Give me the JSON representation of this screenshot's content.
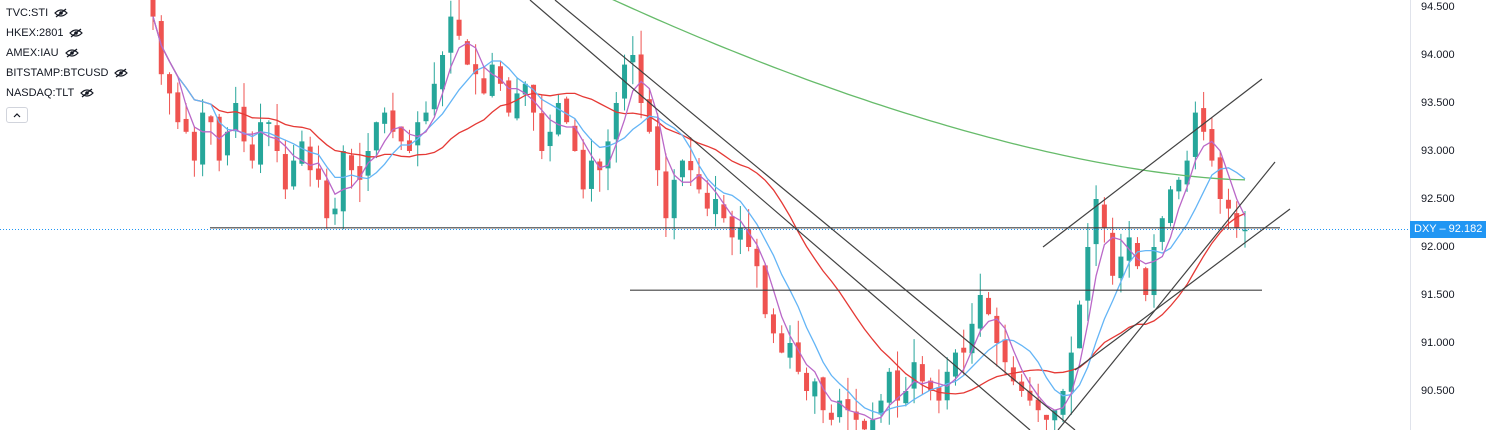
{
  "legend": {
    "symbols": [
      {
        "label": "TVC:STI",
        "icon": "eye-off-icon"
      },
      {
        "label": "HKEX:2801",
        "icon": "eye-off-icon"
      },
      {
        "label": "AMEX:IAU",
        "icon": "eye-off-icon"
      },
      {
        "label": "BITSTAMP:BTCUSD",
        "icon": "eye-off-icon"
      },
      {
        "label": "NASDAQ:TLT",
        "icon": "eye-off-icon"
      }
    ],
    "collapse_icon": "chevron-up-icon"
  },
  "last_price": {
    "symbol": "DXY",
    "value": "92.182",
    "color": "#2196f3"
  },
  "colors": {
    "up": "#26a69a",
    "down": "#ef5350",
    "ma_red": "#e53935",
    "ma_blue": "#64b5f6",
    "ma_purple": "#ba68c8",
    "ma_green": "#66bb6a",
    "trendline": "#424242"
  },
  "chart_data": {
    "type": "candlestick",
    "symbol": "DXY",
    "ylim": [
      90.1,
      94.6
    ],
    "y_ticks": [
      "94.500",
      "94.000",
      "93.500",
      "93.000",
      "92.500",
      "92.000",
      "91.500",
      "91.000",
      "90.500"
    ],
    "y_tick_values": [
      94.5,
      94.0,
      93.5,
      93.0,
      92.5,
      92.0,
      91.5,
      91.0,
      90.5
    ],
    "close_series": [
      94.4,
      93.8,
      93.6,
      93.3,
      93.2,
      92.9,
      93.4,
      93.3,
      92.9,
      93.2,
      93.5,
      93.1,
      92.9,
      93.3,
      93.3,
      93.0,
      92.6,
      92.9,
      93.1,
      92.8,
      92.7,
      92.3,
      92.4,
      93.0,
      92.8,
      92.7,
      93.0,
      93.3,
      93.4,
      93.2,
      93.1,
      93.0,
      93.3,
      93.4,
      93.7,
      94.0,
      94.4,
      94.2,
      93.9,
      93.8,
      93.6,
      93.9,
      93.7,
      93.4,
      93.6,
      93.7,
      93.4,
      93.0,
      93.2,
      93.5,
      93.3,
      93.0,
      92.6,
      92.9,
      92.8,
      93.1,
      93.5,
      93.9,
      94.0,
      93.5,
      93.2,
      92.8,
      92.3,
      92.7,
      92.9,
      92.8,
      92.6,
      92.4,
      92.5,
      92.3,
      92.1,
      92.2,
      92.0,
      91.8,
      91.3,
      91.1,
      90.9,
      91.0,
      90.7,
      90.5,
      90.6,
      90.3,
      90.2,
      90.4,
      90.3,
      90.2,
      90.1,
      90.2,
      90.4,
      90.7,
      90.4,
      90.5,
      90.8,
      90.6,
      90.5,
      90.4,
      90.7,
      90.9,
      90.9,
      91.2,
      91.5,
      91.3,
      91.0,
      90.8,
      90.6,
      90.5,
      90.4,
      90.3,
      90.2,
      90.3,
      90.5,
      90.9,
      91.4,
      92.0,
      92.5,
      92.2,
      91.7,
      91.9,
      92.1,
      91.8,
      91.5,
      92.0,
      92.3,
      92.6,
      92.7,
      92.9,
      93.4,
      93.2,
      92.9,
      92.5,
      92.4,
      92.2,
      92.18
    ],
    "moving_averages": [
      {
        "name": "MA 200",
        "color": "#66bb6a"
      },
      {
        "name": "MA 50",
        "color": "#e53935"
      },
      {
        "name": "MA 20",
        "color": "#64b5f6"
      },
      {
        "name": "MA 9",
        "color": "#ba68c8"
      }
    ],
    "horizontal_lines": [
      92.2,
      91.55
    ],
    "last_price_line": 92.182
  }
}
